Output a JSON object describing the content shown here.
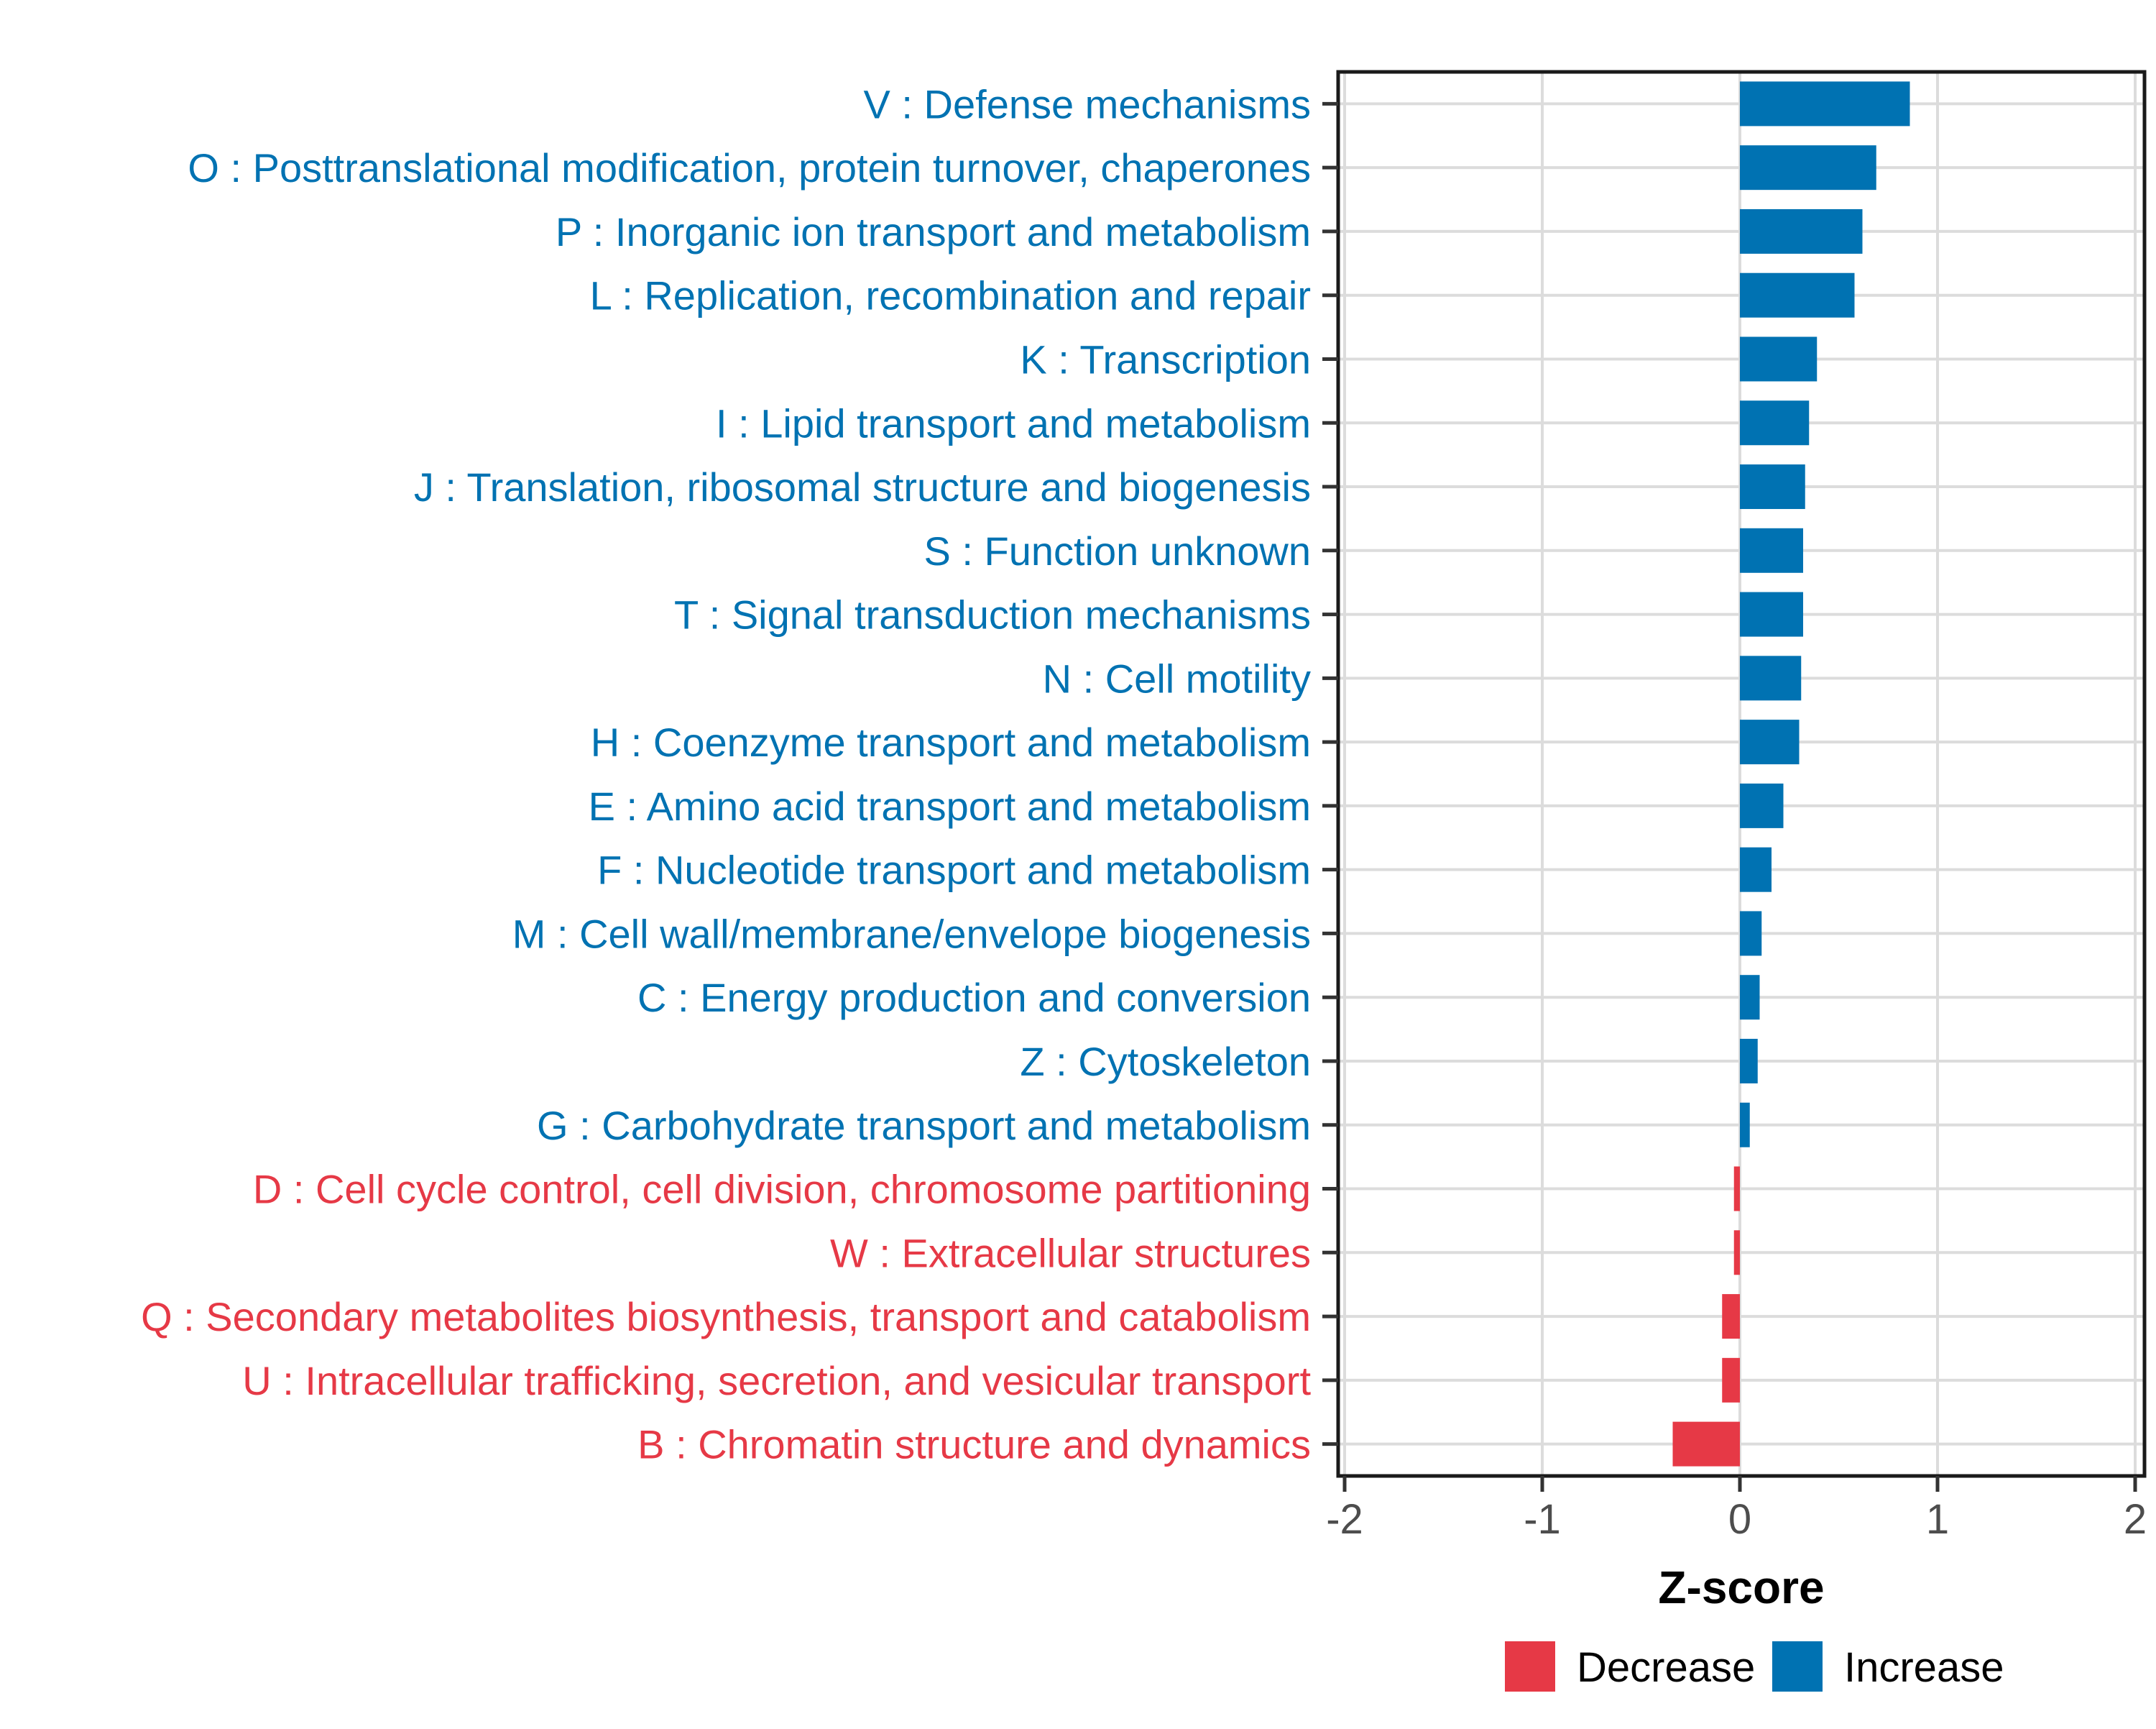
{
  "chart_data": {
    "type": "bar",
    "orientation": "horizontal",
    "title": "",
    "xlabel": "Z-score",
    "ylabel": "",
    "xlim": [
      -2.05,
      2.05
    ],
    "x_tick_values": [
      -2,
      -1,
      0,
      1,
      2
    ],
    "x_tick_labels": [
      "-2",
      "-1",
      "0",
      "1",
      "2"
    ],
    "grid": "major",
    "legend_position": "bottom-right",
    "legend": [
      {
        "label": "Decrease",
        "color": "#E63946"
      },
      {
        "label": "Increase",
        "color": "#0072B2"
      }
    ],
    "colors": {
      "increase": "#0072B2",
      "decrease": "#E63946"
    },
    "rows": [
      {
        "label": "V : Defense mechanisms",
        "value": 0.86,
        "group": "Increase"
      },
      {
        "label": "O : Posttranslational modification, protein turnover, chaperones",
        "value": 0.69,
        "group": "Increase"
      },
      {
        "label": "P : Inorganic ion transport and metabolism",
        "value": 0.62,
        "group": "Increase"
      },
      {
        "label": "L : Replication, recombination and repair",
        "value": 0.58,
        "group": "Increase"
      },
      {
        "label": "K : Transcription",
        "value": 0.39,
        "group": "Increase"
      },
      {
        "label": "I : Lipid transport and metabolism",
        "value": 0.35,
        "group": "Increase"
      },
      {
        "label": "J : Translation, ribosomal structure and biogenesis",
        "value": 0.33,
        "group": "Increase"
      },
      {
        "label": "S : Function unknown",
        "value": 0.32,
        "group": "Increase"
      },
      {
        "label": "T : Signal transduction mechanisms",
        "value": 0.32,
        "group": "Increase"
      },
      {
        "label": "N : Cell motility",
        "value": 0.31,
        "group": "Increase"
      },
      {
        "label": "H : Coenzyme transport and metabolism",
        "value": 0.3,
        "group": "Increase"
      },
      {
        "label": "E : Amino acid transport and metabolism",
        "value": 0.22,
        "group": "Increase"
      },
      {
        "label": "F : Nucleotide transport and metabolism",
        "value": 0.16,
        "group": "Increase"
      },
      {
        "label": "M : Cell wall/membrane/envelope biogenesis",
        "value": 0.11,
        "group": "Increase"
      },
      {
        "label": "C : Energy production and conversion",
        "value": 0.1,
        "group": "Increase"
      },
      {
        "label": "Z : Cytoskeleton",
        "value": 0.09,
        "group": "Increase"
      },
      {
        "label": "G : Carbohydrate transport and metabolism",
        "value": 0.05,
        "group": "Increase"
      },
      {
        "label": "D : Cell cycle control, cell division, chromosome partitioning",
        "value": -0.03,
        "group": "Decrease"
      },
      {
        "label": "W : Extracellular structures",
        "value": -0.03,
        "group": "Decrease"
      },
      {
        "label": "Q : Secondary metabolites biosynthesis, transport and catabolism",
        "value": -0.09,
        "group": "Decrease"
      },
      {
        "label": "U : Intracellular trafficking, secretion, and vesicular transport",
        "value": -0.09,
        "group": "Decrease"
      },
      {
        "label": "B : Chromatin structure and dynamics",
        "value": -0.34,
        "group": "Decrease"
      }
    ]
  }
}
